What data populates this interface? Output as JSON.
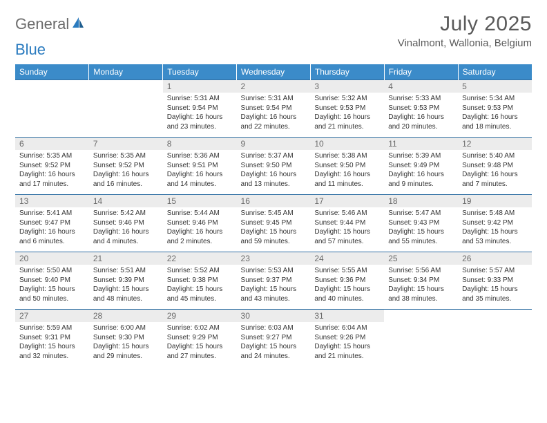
{
  "logo": {
    "general": "General",
    "blue": "Blue"
  },
  "title": "July 2025",
  "location": "Vinalmont, Wallonia, Belgium",
  "colors": {
    "header_bg": "#3b8bc9",
    "header_text": "#ffffff",
    "daynum_bg": "#ececec",
    "daynum_text": "#6a6a6a",
    "row_border": "#2f6fa3",
    "body_text": "#333333",
    "logo_gray": "#6b6b6b",
    "logo_blue": "#2a7bbf"
  },
  "weekdays": [
    "Sunday",
    "Monday",
    "Tuesday",
    "Wednesday",
    "Thursday",
    "Friday",
    "Saturday"
  ],
  "weeks": [
    [
      {
        "n": "",
        "lines": [
          "",
          "",
          "",
          ""
        ]
      },
      {
        "n": "",
        "lines": [
          "",
          "",
          "",
          ""
        ]
      },
      {
        "n": "1",
        "lines": [
          "Sunrise: 5:31 AM",
          "Sunset: 9:54 PM",
          "Daylight: 16 hours",
          "and 23 minutes."
        ]
      },
      {
        "n": "2",
        "lines": [
          "Sunrise: 5:31 AM",
          "Sunset: 9:54 PM",
          "Daylight: 16 hours",
          "and 22 minutes."
        ]
      },
      {
        "n": "3",
        "lines": [
          "Sunrise: 5:32 AM",
          "Sunset: 9:53 PM",
          "Daylight: 16 hours",
          "and 21 minutes."
        ]
      },
      {
        "n": "4",
        "lines": [
          "Sunrise: 5:33 AM",
          "Sunset: 9:53 PM",
          "Daylight: 16 hours",
          "and 20 minutes."
        ]
      },
      {
        "n": "5",
        "lines": [
          "Sunrise: 5:34 AM",
          "Sunset: 9:53 PM",
          "Daylight: 16 hours",
          "and 18 minutes."
        ]
      }
    ],
    [
      {
        "n": "6",
        "lines": [
          "Sunrise: 5:35 AM",
          "Sunset: 9:52 PM",
          "Daylight: 16 hours",
          "and 17 minutes."
        ]
      },
      {
        "n": "7",
        "lines": [
          "Sunrise: 5:35 AM",
          "Sunset: 9:52 PM",
          "Daylight: 16 hours",
          "and 16 minutes."
        ]
      },
      {
        "n": "8",
        "lines": [
          "Sunrise: 5:36 AM",
          "Sunset: 9:51 PM",
          "Daylight: 16 hours",
          "and 14 minutes."
        ]
      },
      {
        "n": "9",
        "lines": [
          "Sunrise: 5:37 AM",
          "Sunset: 9:50 PM",
          "Daylight: 16 hours",
          "and 13 minutes."
        ]
      },
      {
        "n": "10",
        "lines": [
          "Sunrise: 5:38 AM",
          "Sunset: 9:50 PM",
          "Daylight: 16 hours",
          "and 11 minutes."
        ]
      },
      {
        "n": "11",
        "lines": [
          "Sunrise: 5:39 AM",
          "Sunset: 9:49 PM",
          "Daylight: 16 hours",
          "and 9 minutes."
        ]
      },
      {
        "n": "12",
        "lines": [
          "Sunrise: 5:40 AM",
          "Sunset: 9:48 PM",
          "Daylight: 16 hours",
          "and 7 minutes."
        ]
      }
    ],
    [
      {
        "n": "13",
        "lines": [
          "Sunrise: 5:41 AM",
          "Sunset: 9:47 PM",
          "Daylight: 16 hours",
          "and 6 minutes."
        ]
      },
      {
        "n": "14",
        "lines": [
          "Sunrise: 5:42 AM",
          "Sunset: 9:46 PM",
          "Daylight: 16 hours",
          "and 4 minutes."
        ]
      },
      {
        "n": "15",
        "lines": [
          "Sunrise: 5:44 AM",
          "Sunset: 9:46 PM",
          "Daylight: 16 hours",
          "and 2 minutes."
        ]
      },
      {
        "n": "16",
        "lines": [
          "Sunrise: 5:45 AM",
          "Sunset: 9:45 PM",
          "Daylight: 15 hours",
          "and 59 minutes."
        ]
      },
      {
        "n": "17",
        "lines": [
          "Sunrise: 5:46 AM",
          "Sunset: 9:44 PM",
          "Daylight: 15 hours",
          "and 57 minutes."
        ]
      },
      {
        "n": "18",
        "lines": [
          "Sunrise: 5:47 AM",
          "Sunset: 9:43 PM",
          "Daylight: 15 hours",
          "and 55 minutes."
        ]
      },
      {
        "n": "19",
        "lines": [
          "Sunrise: 5:48 AM",
          "Sunset: 9:42 PM",
          "Daylight: 15 hours",
          "and 53 minutes."
        ]
      }
    ],
    [
      {
        "n": "20",
        "lines": [
          "Sunrise: 5:50 AM",
          "Sunset: 9:40 PM",
          "Daylight: 15 hours",
          "and 50 minutes."
        ]
      },
      {
        "n": "21",
        "lines": [
          "Sunrise: 5:51 AM",
          "Sunset: 9:39 PM",
          "Daylight: 15 hours",
          "and 48 minutes."
        ]
      },
      {
        "n": "22",
        "lines": [
          "Sunrise: 5:52 AM",
          "Sunset: 9:38 PM",
          "Daylight: 15 hours",
          "and 45 minutes."
        ]
      },
      {
        "n": "23",
        "lines": [
          "Sunrise: 5:53 AM",
          "Sunset: 9:37 PM",
          "Daylight: 15 hours",
          "and 43 minutes."
        ]
      },
      {
        "n": "24",
        "lines": [
          "Sunrise: 5:55 AM",
          "Sunset: 9:36 PM",
          "Daylight: 15 hours",
          "and 40 minutes."
        ]
      },
      {
        "n": "25",
        "lines": [
          "Sunrise: 5:56 AM",
          "Sunset: 9:34 PM",
          "Daylight: 15 hours",
          "and 38 minutes."
        ]
      },
      {
        "n": "26",
        "lines": [
          "Sunrise: 5:57 AM",
          "Sunset: 9:33 PM",
          "Daylight: 15 hours",
          "and 35 minutes."
        ]
      }
    ],
    [
      {
        "n": "27",
        "lines": [
          "Sunrise: 5:59 AM",
          "Sunset: 9:31 PM",
          "Daylight: 15 hours",
          "and 32 minutes."
        ]
      },
      {
        "n": "28",
        "lines": [
          "Sunrise: 6:00 AM",
          "Sunset: 9:30 PM",
          "Daylight: 15 hours",
          "and 29 minutes."
        ]
      },
      {
        "n": "29",
        "lines": [
          "Sunrise: 6:02 AM",
          "Sunset: 9:29 PM",
          "Daylight: 15 hours",
          "and 27 minutes."
        ]
      },
      {
        "n": "30",
        "lines": [
          "Sunrise: 6:03 AM",
          "Sunset: 9:27 PM",
          "Daylight: 15 hours",
          "and 24 minutes."
        ]
      },
      {
        "n": "31",
        "lines": [
          "Sunrise: 6:04 AM",
          "Sunset: 9:26 PM",
          "Daylight: 15 hours",
          "and 21 minutes."
        ]
      },
      {
        "n": "",
        "lines": [
          "",
          "",
          "",
          ""
        ]
      },
      {
        "n": "",
        "lines": [
          "",
          "",
          "",
          ""
        ]
      }
    ]
  ]
}
